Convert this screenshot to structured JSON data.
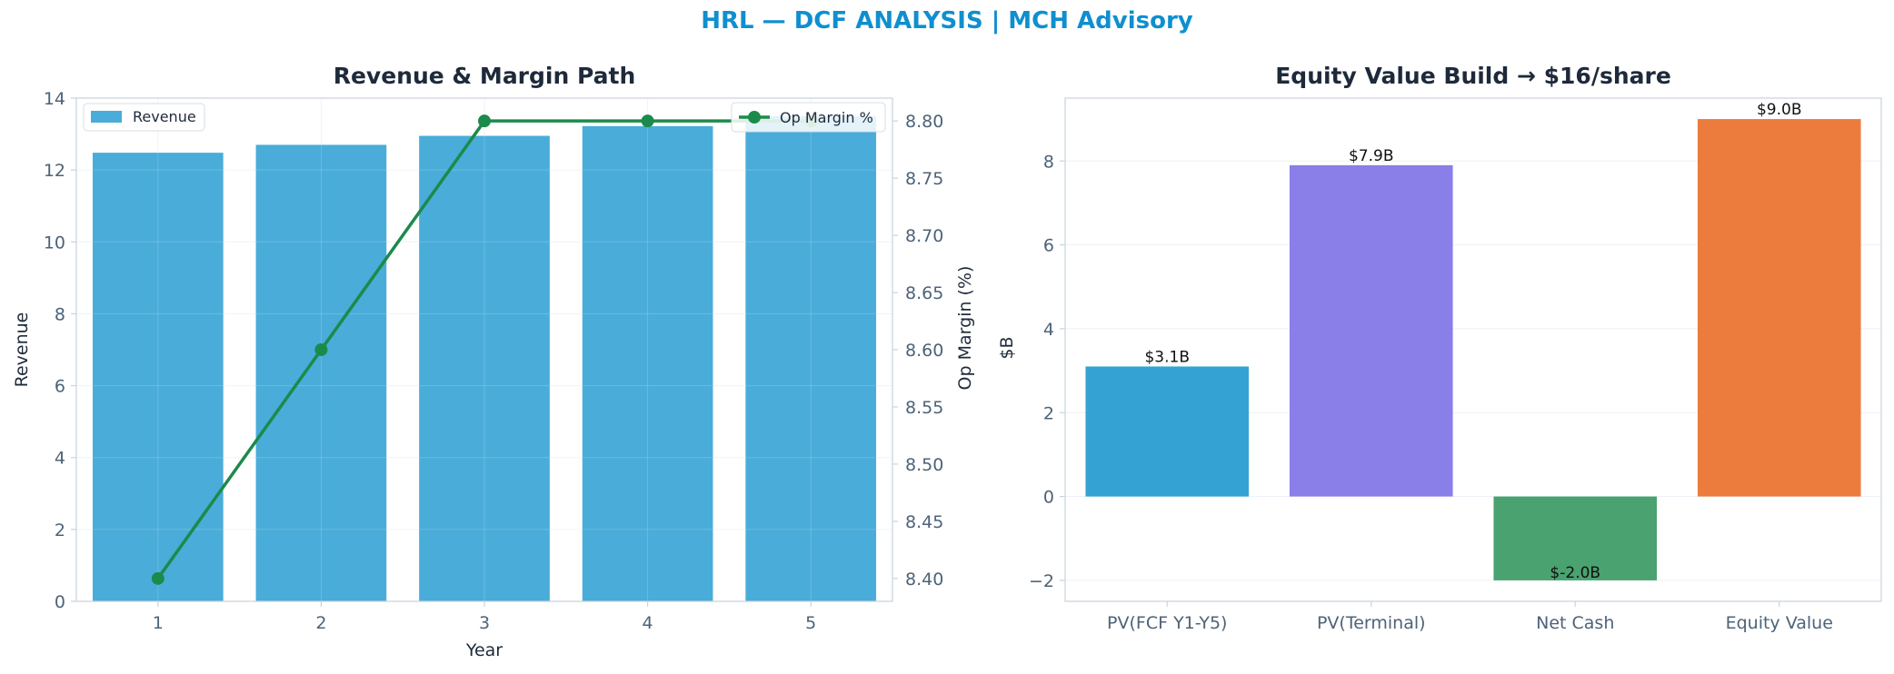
{
  "suptitle": "HRL — DCF ANALYSIS | MCH Advisory",
  "colors": {
    "revenue_bar": "#4aacd9",
    "margin_line": "#1c8a4b",
    "bar_pv_fcf": "#34a3d3",
    "bar_pv_terminal": "#8a7ee9",
    "bar_net_cash": "#4aa270",
    "bar_equity": "#ec7b3e",
    "title_text": "#1e2a3b",
    "tick_text": "#4d6378",
    "spine": "#c9d3dc",
    "grid": "#edf1f5"
  },
  "chart_data": [
    {
      "type": "bar",
      "title": "Revenue & Margin Path",
      "xlabel": "Year",
      "ylabel": "Revenue",
      "y2label": "Op Margin (%)",
      "categories": [
        1,
        2,
        3,
        4,
        5
      ],
      "ylim": [
        0,
        14
      ],
      "yticks": [
        0,
        2,
        4,
        6,
        8,
        10,
        12,
        14
      ],
      "y2lim": [
        8.38,
        8.82
      ],
      "y2ticks": [
        "8.40",
        "8.45",
        "8.50",
        "8.55",
        "8.60",
        "8.65",
        "8.70",
        "8.75",
        "8.80"
      ],
      "grid": true,
      "series": [
        {
          "name": "Revenue",
          "type": "bar",
          "axis": "left",
          "values": [
            12.48,
            12.7,
            12.95,
            13.22,
            13.5
          ]
        },
        {
          "name": "Op Margin %",
          "type": "line",
          "axis": "right",
          "values": [
            8.4,
            8.6,
            8.8,
            8.8,
            8.8
          ]
        }
      ],
      "legend": [
        {
          "label": "Revenue",
          "placement": "upper-left"
        },
        {
          "label": "Op Margin %",
          "placement": "upper-right"
        }
      ]
    },
    {
      "type": "bar",
      "title": "Equity Value Build → $16/share",
      "ylabel": "$B",
      "categories": [
        "PV(FCF Y1-Y5)",
        "PV(Terminal)",
        "Net Cash",
        "Equity Value"
      ],
      "values": [
        3.1,
        7.9,
        -2.0,
        9.0
      ],
      "data_labels": [
        "$3.1B",
        "$7.9B",
        "$-2.0B",
        "$9.0B"
      ],
      "ylim": [
        -2.5,
        9.5
      ],
      "yticks": [
        "−2",
        "0",
        "2",
        "4",
        "6",
        "8"
      ],
      "grid": true
    }
  ]
}
